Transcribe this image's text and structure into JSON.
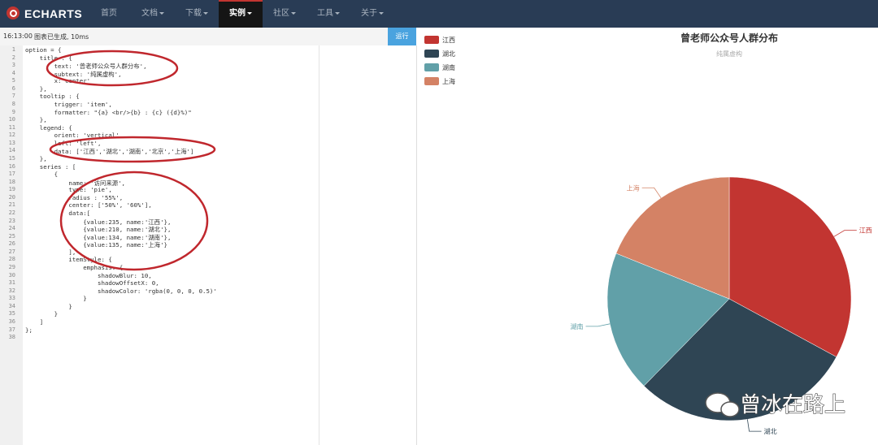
{
  "nav": {
    "logo": "ECHARTS",
    "items": [
      "首页",
      "文档",
      "下载",
      "实例",
      "社区",
      "工具",
      "关于"
    ],
    "active": 3
  },
  "toolbar": {
    "time": "16:13:00",
    "status": "图表已生成, 10ms",
    "run": "运行"
  },
  "editor": {
    "lines": [
      {
        "n": 1,
        "text": "option = {"
      },
      {
        "n": 2,
        "text": "    title : {"
      },
      {
        "n": 3,
        "text": "        text: '曾老师公众号人群分布',"
      },
      {
        "n": 4,
        "text": "        subtext: '纯属虚构',"
      },
      {
        "n": 5,
        "text": "        x:'center'"
      },
      {
        "n": 6,
        "text": "    },"
      },
      {
        "n": 7,
        "text": "    tooltip : {"
      },
      {
        "n": 8,
        "text": "        trigger: 'item',"
      },
      {
        "n": 9,
        "text": "        formatter: \"{a} <br/>{b} : {c} ({d}%)\""
      },
      {
        "n": 10,
        "text": "    },"
      },
      {
        "n": 11,
        "text": "    legend: {"
      },
      {
        "n": 12,
        "text": "        orient: 'vertical',"
      },
      {
        "n": 13,
        "text": "        left: 'left',"
      },
      {
        "n": 14,
        "text": "        data: ['江西','湖北','湖南','北京','上海']"
      },
      {
        "n": 15,
        "text": "    },"
      },
      {
        "n": 16,
        "text": "    series : ["
      },
      {
        "n": 17,
        "text": "        {"
      },
      {
        "n": 18,
        "text": "            name: '访问来源',"
      },
      {
        "n": 19,
        "text": "            type: 'pie',"
      },
      {
        "n": 20,
        "text": "            radius : '55%',"
      },
      {
        "n": 21,
        "text": "            center: ['50%', '60%'],"
      },
      {
        "n": 22,
        "text": "            data:["
      },
      {
        "n": 23,
        "text": "                {value:235, name:'江西'},"
      },
      {
        "n": 24,
        "text": "                {value:210, name:'湖北'},"
      },
      {
        "n": 25,
        "text": "                {value:134, name:'湖南'},"
      },
      {
        "n": 26,
        "text": "                {value:135, name:'上海'}"
      },
      {
        "n": 27,
        "text": "            ],"
      },
      {
        "n": 28,
        "text": "            itemStyle: {"
      },
      {
        "n": 29,
        "text": "                emphasis: {"
      },
      {
        "n": 30,
        "text": "                    shadowBlur: 10,"
      },
      {
        "n": 31,
        "text": "                    shadowOffsetX: 0,"
      },
      {
        "n": 32,
        "text": "                    shadowColor: 'rgba(0, 0, 0, 0.5)'"
      },
      {
        "n": 33,
        "text": "                }"
      },
      {
        "n": 34,
        "text": "            }"
      },
      {
        "n": 35,
        "text": "        }"
      },
      {
        "n": 36,
        "text": "    ]"
      },
      {
        "n": 37,
        "text": "};"
      },
      {
        "n": 38,
        "text": ""
      }
    ]
  },
  "chart_data": {
    "type": "pie",
    "title": "曾老师公众号人群分布",
    "subtitle": "纯属虚构",
    "categories": [
      "江西",
      "湖北",
      "湖南",
      "上海"
    ],
    "values": [
      235,
      210,
      134,
      135
    ],
    "colors": [
      "#c23531",
      "#2f4554",
      "#61a0a8",
      "#d48265"
    ],
    "legend": "top-left"
  },
  "watermark": "曾冰在路上"
}
